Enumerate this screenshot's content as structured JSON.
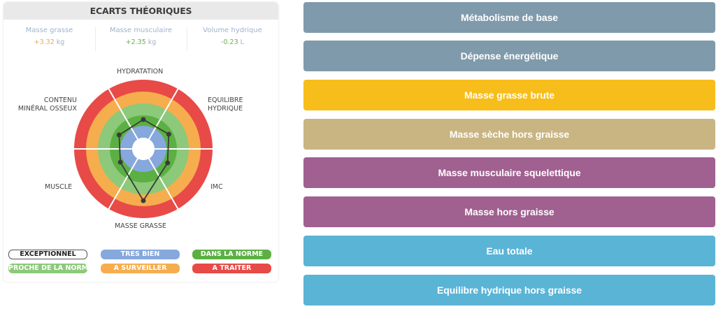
{
  "card": {
    "title": "ECARTS THÉORIQUES",
    "stats": [
      {
        "label": "Masse grasse",
        "value": "+3.32",
        "unit": "kg",
        "value_color": "#f0a84b"
      },
      {
        "label": "Masse musculaire",
        "value": "+2.35",
        "unit": "kg",
        "value_color": "#6ab04c"
      },
      {
        "label": "Volume hydrique",
        "value": "-0.23",
        "unit": "L",
        "value_color": "#6ab04c"
      }
    ]
  },
  "chart_data": {
    "type": "radar",
    "title": "",
    "axes": [
      "Hydratation",
      "Equilibre hydrique",
      "IMC",
      "Masse grasse",
      "Muscle",
      "Contenu minéral osseux"
    ],
    "axis_labels": {
      "hydratation": "HYDRATATION",
      "equilibre_l1": "EQUILIBRE",
      "equilibre_l2": "HYDRIQUE",
      "imc": "IMC",
      "masse_grasse": "MASSE GRASSE",
      "muscle": "MUSCLE",
      "contenu_l1": "CONTENU",
      "contenu_l2": "MINÉRAL OSSEUX"
    },
    "zones": [
      {
        "name": "Exceptionnel",
        "radius": 16,
        "color": "#ffffff"
      },
      {
        "name": "Tres bien",
        "radius": 33,
        "color": "#86a8dc"
      },
      {
        "name": "Dans la norme",
        "radius": 48,
        "color": "#5cb043"
      },
      {
        "name": "Proche de la norme",
        "radius": 65,
        "color": "#8cc97a"
      },
      {
        "name": "A surveiller",
        "radius": 82,
        "color": "#f6ad4e"
      },
      {
        "name": "A traiter",
        "radius": 99,
        "color": "#e84a48"
      }
    ],
    "values": [
      42,
      42,
      40,
      74,
      38,
      40
    ],
    "value_zone": [
      "Dans la norme",
      "Dans la norme",
      "Dans la norme",
      "A surveiller",
      "Dans la norme",
      "Dans la norme"
    ]
  },
  "legend": [
    {
      "label": "EXCEPTIONNEL",
      "color": "#ffffff",
      "outline": true
    },
    {
      "label": "TRES BIEN",
      "color": "#86a8dc"
    },
    {
      "label": "DANS LA NORME",
      "color": "#5cb043"
    },
    {
      "label": "PROCHE DE LA NORME",
      "color": "#8cc97a"
    },
    {
      "label": "A SURVEILLER",
      "color": "#f6ad4e"
    },
    {
      "label": "A TRAITER",
      "color": "#e84a48"
    }
  ],
  "buttons": [
    {
      "label": "Métabolisme de base",
      "color": "#7f9aab"
    },
    {
      "label": "Dépense énergétique",
      "color": "#7f9aab"
    },
    {
      "label": "Masse grasse brute",
      "color": "#f7bd1b"
    },
    {
      "label": "Masse sèche hors graisse",
      "color": "#c8b582"
    },
    {
      "label": "Masse musculaire squelettique",
      "color": "#a06090"
    },
    {
      "label": "Masse hors graisse",
      "color": "#a06090"
    },
    {
      "label": "Eau totale",
      "color": "#5ab4d6"
    },
    {
      "label": "Equilibre hydrique hors graisse",
      "color": "#5ab4d6"
    }
  ]
}
